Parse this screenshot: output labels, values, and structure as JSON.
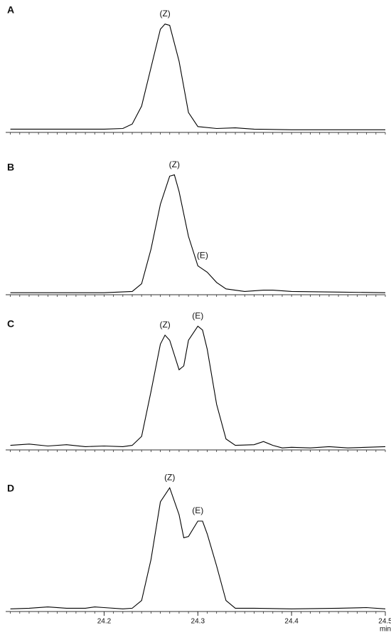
{
  "chart_data": [
    {
      "type": "line",
      "label": "A",
      "color": "#000000",
      "xlim": [
        24.095,
        24.5
      ],
      "ylim": [
        0,
        100
      ],
      "x": [
        24.1,
        24.15,
        24.2,
        24.22,
        24.23,
        24.24,
        24.25,
        24.26,
        24.265,
        24.27,
        24.28,
        24.29,
        24.3,
        24.32,
        24.34,
        24.36,
        24.4,
        24.45,
        24.5
      ],
      "values": [
        2,
        2,
        2,
        2.5,
        6,
        20,
        50,
        80,
        84,
        83,
        55,
        15,
        4,
        2.5,
        3,
        2,
        1.5,
        1.5,
        1.5
      ],
      "annotations": [
        {
          "text": "(Z)",
          "x": 24.265
        }
      ],
      "minor_xticks": [
        24.1,
        24.11,
        24.12,
        24.13,
        24.14,
        24.15,
        24.16,
        24.17,
        24.18,
        24.19,
        24.2,
        24.21,
        24.22,
        24.23,
        24.24,
        24.25,
        24.26,
        24.27,
        24.28,
        24.29,
        24.3,
        24.31,
        24.32,
        24.33,
        24.34,
        24.35,
        24.36,
        24.37,
        24.38,
        24.39,
        24.4,
        24.41,
        24.42,
        24.43,
        24.44,
        24.45,
        24.46,
        24.47,
        24.48,
        24.49,
        24.5
      ]
    },
    {
      "type": "line",
      "label": "B",
      "color": "#000000",
      "xlim": [
        24.095,
        24.5
      ],
      "ylim": [
        0,
        100
      ],
      "x": [
        24.1,
        24.2,
        24.23,
        24.24,
        24.25,
        24.26,
        24.27,
        24.275,
        24.28,
        24.29,
        24.3,
        24.31,
        24.32,
        24.33,
        24.35,
        24.37,
        24.38,
        24.4,
        24.45,
        24.5
      ],
      "values": [
        1,
        1,
        2,
        8,
        35,
        70,
        92,
        93,
        80,
        45,
        22,
        17,
        9,
        4,
        2,
        3,
        3,
        2,
        1.5,
        1
      ],
      "annotations": [
        {
          "text": "(Z)",
          "x": 24.275
        },
        {
          "text": "(E)",
          "x": 24.305
        }
      ],
      "minor_xticks": [
        24.1,
        24.11,
        24.12,
        24.13,
        24.14,
        24.15,
        24.16,
        24.17,
        24.18,
        24.19,
        24.2,
        24.21,
        24.22,
        24.23,
        24.24,
        24.25,
        24.26,
        24.27,
        24.28,
        24.29,
        24.3,
        24.31,
        24.32,
        24.33,
        24.34,
        24.35,
        24.36,
        24.37,
        24.38,
        24.39,
        24.4,
        24.41,
        24.42,
        24.43,
        24.44,
        24.45,
        24.46,
        24.47,
        24.48,
        24.49,
        24.5
      ]
    },
    {
      "type": "line",
      "label": "C",
      "color": "#000000",
      "xlim": [
        24.095,
        24.5
      ],
      "ylim": [
        0,
        100
      ],
      "x": [
        24.1,
        24.12,
        24.14,
        24.16,
        24.18,
        24.2,
        24.22,
        24.23,
        24.24,
        24.25,
        24.26,
        24.265,
        24.27,
        24.28,
        24.285,
        24.29,
        24.3,
        24.305,
        24.31,
        24.32,
        24.33,
        24.34,
        24.36,
        24.37,
        24.38,
        24.39,
        24.4,
        24.42,
        24.44,
        24.46,
        24.48,
        24.5
      ],
      "values": [
        3,
        4,
        2.5,
        3.5,
        2,
        2.5,
        2,
        3,
        10,
        45,
        82,
        89,
        85,
        62,
        65,
        85,
        96,
        93,
        78,
        35,
        8,
        3,
        3.5,
        6,
        3,
        1,
        1.5,
        1,
        2,
        1,
        1.5,
        2
      ],
      "annotations": [
        {
          "text": "(Z)",
          "x": 24.265
        },
        {
          "text": "(E)",
          "x": 24.3
        }
      ],
      "minor_xticks": [
        24.1,
        24.11,
        24.12,
        24.13,
        24.14,
        24.15,
        24.16,
        24.17,
        24.18,
        24.19,
        24.2,
        24.21,
        24.22,
        24.23,
        24.24,
        24.25,
        24.26,
        24.27,
        24.28,
        24.29,
        24.3,
        24.31,
        24.32,
        24.33,
        24.34,
        24.35,
        24.36,
        24.37,
        24.38,
        24.39,
        24.4,
        24.41,
        24.42,
        24.43,
        24.44,
        24.45,
        24.46,
        24.47,
        24.48,
        24.49,
        24.5
      ]
    },
    {
      "type": "line",
      "label": "D",
      "color": "#000000",
      "xlim": [
        24.095,
        24.5
      ],
      "ylim": [
        0,
        100
      ],
      "x": [
        24.1,
        24.12,
        24.14,
        24.16,
        24.18,
        24.19,
        24.2,
        24.22,
        24.23,
        24.24,
        24.25,
        24.26,
        24.27,
        24.28,
        24.285,
        24.29,
        24.3,
        24.305,
        24.31,
        24.32,
        24.33,
        24.34,
        24.36,
        24.4,
        24.45,
        24.48,
        24.5
      ],
      "values": [
        1.5,
        2,
        3,
        2,
        2,
        3,
        2.5,
        1.5,
        2,
        8,
        40,
        85,
        96,
        75,
        57,
        58,
        70,
        70,
        60,
        35,
        8,
        2,
        2,
        1.5,
        2,
        2.5,
        1.5
      ],
      "annotations": [
        {
          "text": "(Z)",
          "x": 24.27
        },
        {
          "text": "(E)",
          "x": 24.3
        }
      ],
      "xticks": [
        24.2,
        24.3,
        24.4,
        24.5
      ],
      "x_label": "min",
      "minor_xticks": [
        24.1,
        24.11,
        24.12,
        24.13,
        24.14,
        24.15,
        24.16,
        24.17,
        24.18,
        24.19,
        24.2,
        24.21,
        24.22,
        24.23,
        24.24,
        24.25,
        24.26,
        24.27,
        24.28,
        24.29,
        24.3,
        24.31,
        24.32,
        24.33,
        24.34,
        24.35,
        24.36,
        24.37,
        24.38,
        24.39,
        24.4,
        24.41,
        24.42,
        24.43,
        24.44,
        24.45,
        24.46,
        24.47,
        24.48,
        24.49,
        24.5
      ]
    }
  ]
}
